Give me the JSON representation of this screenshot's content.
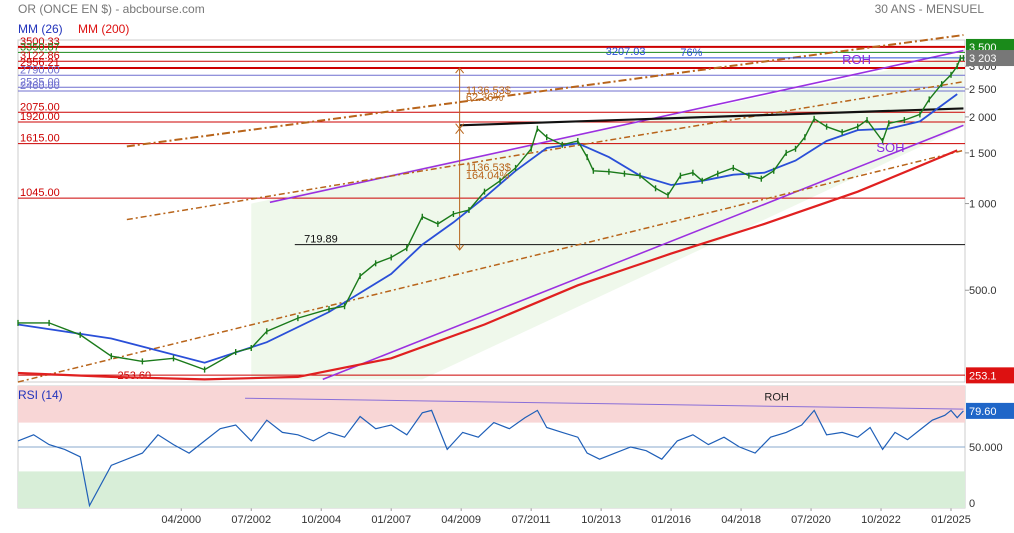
{
  "header": {
    "title": "OR (ONCE EN $) - abcbourse.com",
    "period": "30 ANS - MENSUEL",
    "ma_fast_label": "MM (26)",
    "ma_slow_label": "MM (200)",
    "rsi_label": "RSI (14)"
  },
  "colors": {
    "price": "#1a7a1a",
    "ma_fast": "#2a4fd8",
    "ma_slow": "#e02020",
    "channel": "#9b30e0",
    "fib": "#b8641a",
    "trend": "#111111",
    "resistance": "#cc0000",
    "rsi": "#1f5fb8",
    "rsi_overbought": "#f8d6d6",
    "rsi_oversold": "#d8eed8"
  },
  "chart_data": [
    {
      "type": "line",
      "title": "OR (ONCE EN $)",
      "x_ticks": [
        "04/2000",
        "07/2002",
        "10/2004",
        "01/2007",
        "04/2009",
        "07/2011",
        "10/2013",
        "01/2016",
        "04/2018",
        "07/2020",
        "10/2022",
        "01/2025"
      ],
      "y_scale": "log",
      "y_ticks": [
        "3 000",
        "2 500",
        "2 000",
        "1 500",
        "1 000",
        "500.0"
      ],
      "y_tick_values": [
        3000,
        2500,
        2000,
        1500,
        1000,
        500
      ],
      "price_badges": [
        {
          "label": "3 500",
          "value": 3500,
          "color": "#1a8a1a"
        },
        {
          "label": "3 203",
          "value": 3203,
          "color": "#777777"
        },
        {
          "label": "253.1",
          "value": 253.1,
          "color": "#dd1111"
        }
      ],
      "level_lines": [
        {
          "label": "3500.33",
          "value": 3500.33,
          "color": "#cc0000"
        },
        {
          "label": "3350.87",
          "value": 3350.87,
          "color": "#1a8a1a"
        },
        {
          "label": "3122.86",
          "value": 3122.86,
          "color": "#cc0000"
        },
        {
          "label": "2956.21",
          "value": 2956.21,
          "color": "#cc0000"
        },
        {
          "label": "2790.00",
          "value": 2790,
          "color": "#6f6fcf"
        },
        {
          "label": "2535.00",
          "value": 2535,
          "color": "#6f6fcf"
        },
        {
          "label": "2460.00",
          "value": 2460,
          "color": "#6f6fcf"
        },
        {
          "label": "2075.00",
          "value": 2075,
          "color": "#cc0000"
        },
        {
          "label": "1920.00",
          "value": 1920,
          "color": "#cc0000"
        },
        {
          "label": "1615.00",
          "value": 1615,
          "color": "#cc0000"
        },
        {
          "label": "1045.00",
          "value": 1045,
          "color": "#cc0000"
        },
        {
          "label": "719.89",
          "value": 719.89,
          "color": "#111111"
        },
        {
          "label": "253.60",
          "value": 253.6,
          "color": "#cc0000"
        }
      ],
      "annotations": [
        {
          "text": "3207.03",
          "color": "#2a4fd8"
        },
        {
          "text": "76%",
          "color": "#2a4fd8"
        },
        {
          "text": "ROH",
          "color": "#8a2be2"
        },
        {
          "text": "SOH",
          "color": "#8a2be2"
        },
        {
          "text": "1136.53$",
          "color": "#b8641a"
        },
        {
          "text": "62.36%",
          "color": "#b8641a"
        },
        {
          "text": "1136.53$",
          "color": "#b8641a"
        },
        {
          "text": "164.04%",
          "color": "#b8641a"
        }
      ],
      "series": [
        {
          "name": "OR (ONCE EN $)",
          "x": [
            1995.0,
            1996.0,
            1997.0,
            1998.0,
            1999.0,
            2000.0,
            2001.0,
            2002.0,
            2002.5,
            2003.0,
            2004.0,
            2005.0,
            2005.5,
            2006.0,
            2006.5,
            2007.0,
            2007.5,
            2008.0,
            2008.5,
            2009.0,
            2009.5,
            2010.0,
            2010.5,
            2011.0,
            2011.5,
            2011.7,
            2012.0,
            2012.5,
            2013.0,
            2013.3,
            2013.5,
            2014.0,
            2014.5,
            2015.0,
            2015.5,
            2015.9,
            2016.3,
            2016.7,
            2017.0,
            2017.5,
            2018.0,
            2018.5,
            2018.9,
            2019.3,
            2019.7,
            2020.0,
            2020.3,
            2020.6,
            2021.0,
            2021.5,
            2022.0,
            2022.3,
            2022.8,
            2023.0,
            2023.5,
            2024.0,
            2024.3,
            2024.7,
            2025.0,
            2025.2,
            2025.3,
            2025.4
          ],
          "values": [
            385,
            385,
            350,
            295,
            283,
            290,
            265,
            305,
            315,
            360,
            400,
            430,
            440,
            560,
            620,
            650,
            700,
            900,
            850,
            920,
            950,
            1100,
            1200,
            1330,
            1550,
            1820,
            1700,
            1600,
            1650,
            1450,
            1300,
            1290,
            1270,
            1250,
            1130,
            1070,
            1250,
            1280,
            1200,
            1270,
            1330,
            1250,
            1220,
            1300,
            1500,
            1550,
            1700,
            1970,
            1850,
            1770,
            1850,
            1950,
            1650,
            1900,
            1950,
            2040,
            2300,
            2600,
            2800,
            3000,
            3200,
            3203
          ]
        },
        {
          "name": "MM (26)",
          "x": [
            1995.0,
            1998.0,
            2001.0,
            2003.0,
            2005.0,
            2007.0,
            2008.0,
            2009.0,
            2010.0,
            2011.0,
            2012.0,
            2013.0,
            2014.0,
            2015.0,
            2016.0,
            2017.0,
            2018.0,
            2019.0,
            2020.0,
            2021.0,
            2022.0,
            2023.0,
            2024.0,
            2025.2
          ],
          "values": [
            380,
            340,
            280,
            330,
            420,
            570,
            720,
            860,
            1050,
            1300,
            1560,
            1620,
            1450,
            1250,
            1160,
            1200,
            1260,
            1280,
            1410,
            1650,
            1800,
            1820,
            1930,
            2400
          ]
        },
        {
          "name": "MM (200)",
          "x": [
            1995.0,
            1998.0,
            2001.0,
            2004.0,
            2007.0,
            2010.0,
            2013.0,
            2016.0,
            2019.0,
            2022.0,
            2025.2
          ],
          "values": [
            258,
            250,
            245,
            250,
            290,
            380,
            520,
            670,
            850,
            1100,
            1530
          ]
        }
      ]
    },
    {
      "type": "line",
      "title": "RSI (14)",
      "y_ticks": [
        "79.60",
        "50.000",
        "0"
      ],
      "current_value": "79.60",
      "annotation": "ROH",
      "series": [
        {
          "name": "RSI (14)",
          "x": [
            1995.0,
            1995.5,
            1996.0,
            1996.5,
            1997.0,
            1997.3,
            1998.0,
            1999.0,
            1999.5,
            2000.0,
            2000.5,
            2001.0,
            2001.5,
            2002.0,
            2002.5,
            2003.0,
            2003.5,
            2004.0,
            2004.5,
            2005.0,
            2005.5,
            2006.0,
            2006.5,
            2007.0,
            2007.5,
            2008.0,
            2008.3,
            2008.8,
            2009.3,
            2009.8,
            2010.3,
            2010.8,
            2011.3,
            2011.7,
            2012.0,
            2012.5,
            2013.0,
            2013.3,
            2013.7,
            2014.2,
            2014.7,
            2015.2,
            2015.7,
            2016.2,
            2016.7,
            2017.2,
            2017.7,
            2018.2,
            2018.7,
            2019.2,
            2019.7,
            2020.2,
            2020.6,
            2021.0,
            2021.5,
            2022.0,
            2022.4,
            2022.8,
            2023.2,
            2023.6,
            2024.0,
            2024.4,
            2024.8,
            2025.0,
            2025.2,
            2025.4
          ],
          "values": [
            55,
            60,
            52,
            48,
            42,
            2,
            35,
            45,
            60,
            52,
            45,
            55,
            65,
            68,
            55,
            72,
            62,
            60,
            55,
            62,
            58,
            75,
            65,
            68,
            60,
            78,
            80,
            48,
            62,
            58,
            70,
            65,
            74,
            80,
            66,
            62,
            58,
            45,
            40,
            45,
            50,
            47,
            40,
            55,
            60,
            52,
            58,
            50,
            45,
            58,
            62,
            68,
            80,
            60,
            62,
            58,
            66,
            48,
            62,
            56,
            64,
            72,
            76,
            80,
            74,
            79.6
          ]
        }
      ]
    }
  ]
}
